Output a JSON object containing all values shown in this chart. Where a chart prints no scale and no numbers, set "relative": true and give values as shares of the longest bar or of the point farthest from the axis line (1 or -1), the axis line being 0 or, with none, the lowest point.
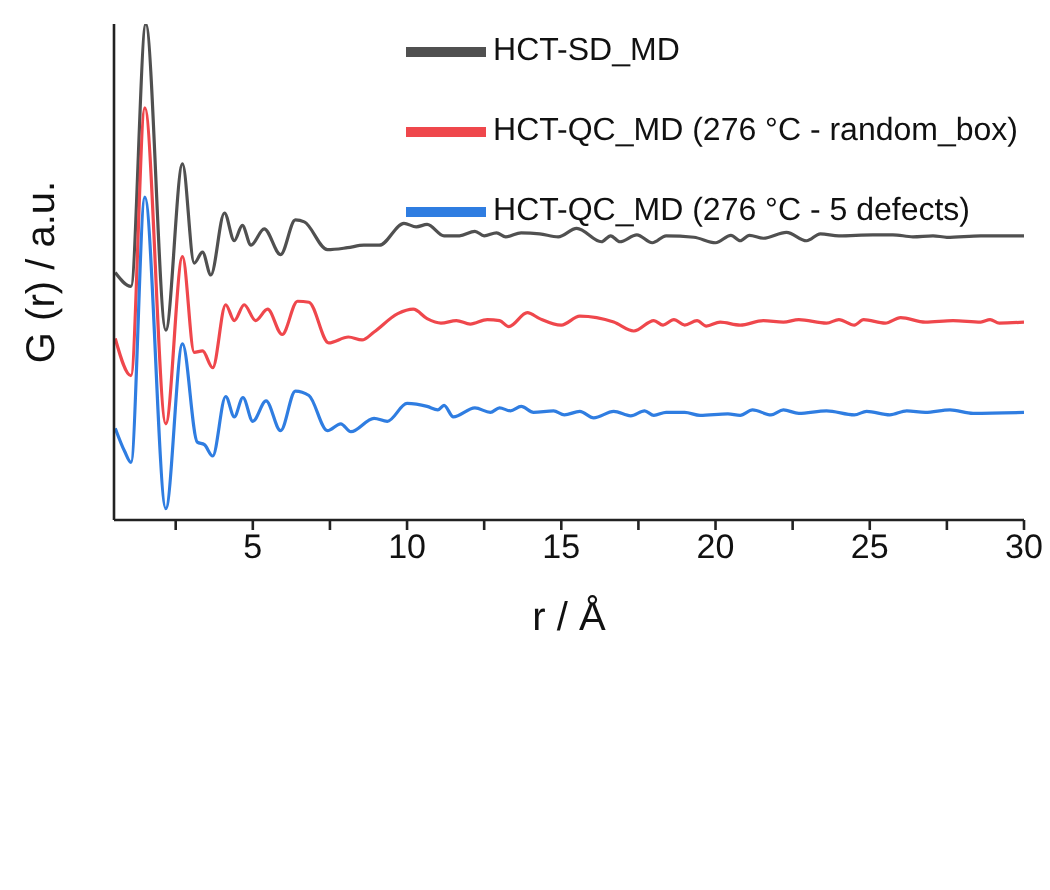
{
  "chart_data": {
    "type": "line",
    "relative": true,
    "xlabel": "r / Å",
    "ylabel": "G (r) / a.u.",
    "xlim": [
      0.5,
      30
    ],
    "xticks": [
      {
        "value": 2.5,
        "label": null
      },
      5,
      {
        "value": 7.5,
        "label": null
      },
      10,
      {
        "value": 12.5,
        "label": null
      },
      15,
      {
        "value": 17.5,
        "label": null
      },
      20,
      {
        "value": 22.5,
        "label": null
      },
      25,
      {
        "value": 27.5,
        "label": null
      },
      30
    ],
    "legend": "top right",
    "grid": false,
    "marker": "none",
    "line_style": "solid",
    "series": [
      {
        "name": "HCT-SD_MD",
        "color": "#505050",
        "x": [
          0.54,
          1.05,
          1.53,
          2.18,
          2.72,
          3.1,
          3.37,
          3.64,
          4.08,
          4.4,
          4.66,
          4.94,
          5.37,
          5.9,
          6.38,
          6.67,
          7.42,
          8.07,
          8.6,
          9.1,
          9.9,
          10.3,
          10.65,
          11.2,
          11.7,
          12.2,
          12.5,
          12.9,
          13.2,
          13.7,
          14.3,
          14.9,
          15.5,
          16.3,
          16.6,
          16.9,
          17.45,
          17.95,
          18.4,
          19.3,
          20.0,
          20.5,
          20.8,
          21.1,
          21.55,
          22.3,
          22.95,
          23.4,
          24.0,
          25.1,
          25.75,
          26.4,
          27.05,
          27.5,
          28.6,
          30
        ],
        "values": [
          0.499,
          0.471,
          1.0,
          0.383,
          0.718,
          0.518,
          0.54,
          0.494,
          0.619,
          0.563,
          0.594,
          0.554,
          0.587,
          0.535,
          0.605,
          0.601,
          0.545,
          0.549,
          0.554,
          0.554,
          0.598,
          0.591,
          0.596,
          0.573,
          0.573,
          0.582,
          0.573,
          0.579,
          0.571,
          0.579,
          0.577,
          0.571,
          0.588,
          0.561,
          0.573,
          0.561,
          0.575,
          0.559,
          0.573,
          0.57,
          0.559,
          0.574,
          0.563,
          0.574,
          0.568,
          0.58,
          0.563,
          0.577,
          0.573,
          0.575,
          0.575,
          0.571,
          0.573,
          0.57,
          0.573,
          0.573
        ]
      },
      {
        "name": "HCT-QC_MD (276 °C - random_box)",
        "color": "#ef474c",
        "x": [
          0.54,
          1.05,
          1.5,
          2.18,
          2.72,
          3.1,
          3.37,
          3.7,
          4.12,
          4.4,
          4.72,
          5.09,
          5.48,
          5.95,
          6.45,
          6.82,
          7.46,
          8.1,
          8.54,
          8.93,
          9.7,
          10.2,
          10.65,
          11.1,
          11.6,
          12.05,
          12.6,
          13.0,
          13.3,
          13.9,
          14.3,
          15.0,
          15.6,
          16.7,
          17.35,
          18.0,
          18.3,
          18.65,
          19.0,
          19.4,
          19.7,
          20.15,
          20.8,
          21.55,
          22.2,
          22.7,
          23.6,
          24.0,
          24.5,
          24.8,
          25.5,
          26.0,
          26.8,
          27.7,
          28.6,
          28.9,
          29.2,
          30
        ],
        "values": [
          0.366,
          0.291,
          0.831,
          0.194,
          0.531,
          0.338,
          0.341,
          0.307,
          0.434,
          0.402,
          0.434,
          0.402,
          0.425,
          0.374,
          0.441,
          0.439,
          0.357,
          0.369,
          0.363,
          0.379,
          0.416,
          0.425,
          0.406,
          0.397,
          0.402,
          0.395,
          0.404,
          0.402,
          0.39,
          0.418,
          0.406,
          0.393,
          0.411,
          0.399,
          0.381,
          0.402,
          0.393,
          0.404,
          0.393,
          0.402,
          0.391,
          0.399,
          0.393,
          0.402,
          0.399,
          0.404,
          0.397,
          0.404,
          0.393,
          0.404,
          0.397,
          0.408,
          0.399,
          0.402,
          0.399,
          0.404,
          0.397,
          0.399
        ]
      },
      {
        "name": "HCT-QC_MD (276 °C - 5 defects)",
        "color": "#2f7de1",
        "x": [
          0.54,
          0.84,
          1.05,
          1.5,
          2.18,
          2.72,
          3.2,
          3.43,
          3.7,
          4.12,
          4.4,
          4.68,
          5.0,
          5.43,
          5.9,
          6.38,
          6.82,
          7.42,
          7.85,
          8.18,
          8.93,
          9.36,
          10.0,
          10.65,
          11.0,
          11.2,
          11.5,
          12.2,
          12.7,
          13.0,
          13.35,
          13.7,
          14.1,
          14.75,
          15.1,
          15.6,
          16.05,
          16.7,
          17.25,
          17.7,
          18.0,
          18.4,
          19.0,
          19.5,
          20.4,
          20.8,
          21.2,
          21.8,
          22.2,
          22.7,
          23.6,
          24.5,
          24.9,
          25.65,
          26.2,
          26.8,
          27.6,
          28.35,
          30
        ],
        "values": [
          0.185,
          0.139,
          0.116,
          0.651,
          0.023,
          0.355,
          0.157,
          0.152,
          0.129,
          0.249,
          0.208,
          0.247,
          0.199,
          0.24,
          0.18,
          0.26,
          0.251,
          0.18,
          0.194,
          0.178,
          0.205,
          0.199,
          0.235,
          0.229,
          0.222,
          0.231,
          0.208,
          0.226,
          0.217,
          0.226,
          0.22,
          0.229,
          0.217,
          0.22,
          0.212,
          0.219,
          0.206,
          0.219,
          0.21,
          0.22,
          0.211,
          0.217,
          0.217,
          0.211,
          0.214,
          0.211,
          0.222,
          0.212,
          0.222,
          0.215,
          0.22,
          0.212,
          0.219,
          0.212,
          0.22,
          0.217,
          0.222,
          0.215,
          0.217
        ]
      }
    ]
  }
}
